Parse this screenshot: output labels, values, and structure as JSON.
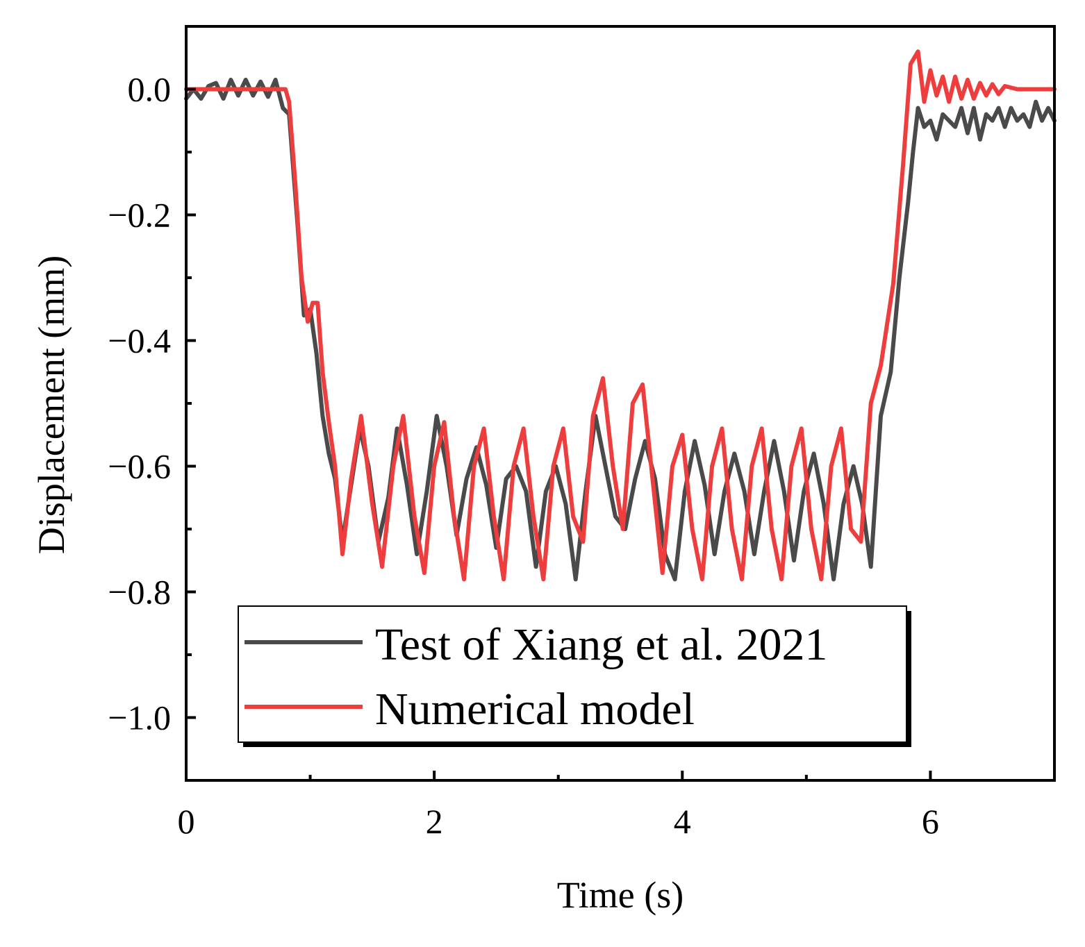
{
  "chart_data": {
    "type": "line",
    "title": "",
    "xlabel": "Time (s)",
    "ylabel": "Displacement (mm)",
    "xlim": [
      0,
      7
    ],
    "ylim": [
      -1.1,
      0.1
    ],
    "xticks": [
      0,
      2,
      4,
      6
    ],
    "xtick_labels": [
      "0",
      "2",
      "4",
      "6"
    ],
    "xminor": [
      1,
      3,
      5
    ],
    "yticks": [
      0.0,
      -0.2,
      -0.4,
      -0.6,
      -0.8,
      -1.0
    ],
    "ytick_labels": [
      "0.0",
      "−0.2",
      "−0.4",
      "−0.6",
      "−0.8",
      "−1.0"
    ],
    "yminor": [
      -0.1,
      -0.3,
      -0.5,
      -0.7,
      -0.9
    ],
    "grid": false,
    "legend_position": "bottom-left",
    "series": [
      {
        "name": "Test of Xiang et al. 2021",
        "color": "#4a4a4a",
        "x": [
          0,
          0.06,
          0.12,
          0.18,
          0.24,
          0.3,
          0.36,
          0.42,
          0.48,
          0.54,
          0.6,
          0.66,
          0.72,
          0.78,
          0.83,
          0.9,
          0.95,
          1.0,
          1.05,
          1.1,
          1.15,
          1.2,
          1.26,
          1.33,
          1.4,
          1.47,
          1.55,
          1.63,
          1.7,
          1.78,
          1.86,
          1.94,
          2.02,
          2.1,
          2.18,
          2.26,
          2.34,
          2.42,
          2.5,
          2.58,
          2.66,
          2.74,
          2.82,
          2.9,
          2.98,
          3.06,
          3.14,
          3.22,
          3.3,
          3.38,
          3.46,
          3.54,
          3.62,
          3.7,
          3.78,
          3.86,
          3.94,
          4.02,
          4.1,
          4.18,
          4.26,
          4.34,
          4.42,
          4.5,
          4.58,
          4.66,
          4.74,
          4.82,
          4.9,
          4.98,
          5.06,
          5.14,
          5.22,
          5.3,
          5.38,
          5.45,
          5.52,
          5.6,
          5.68,
          5.75,
          5.82,
          5.86,
          5.9,
          5.95,
          6.0,
          6.05,
          6.1,
          6.15,
          6.2,
          6.25,
          6.3,
          6.35,
          6.4,
          6.45,
          6.5,
          6.55,
          6.6,
          6.65,
          6.7,
          6.75,
          6.8,
          6.85,
          6.9,
          6.95,
          7.0
        ],
        "values": [
          -0.015,
          0.0,
          -0.015,
          0.005,
          0.01,
          -0.015,
          0.015,
          -0.01,
          0.015,
          -0.01,
          0.012,
          -0.012,
          0.015,
          -0.03,
          -0.04,
          -0.22,
          -0.36,
          -0.35,
          -0.42,
          -0.52,
          -0.58,
          -0.62,
          -0.72,
          -0.63,
          -0.54,
          -0.6,
          -0.72,
          -0.65,
          -0.54,
          -0.63,
          -0.74,
          -0.64,
          -0.52,
          -0.6,
          -0.71,
          -0.62,
          -0.57,
          -0.63,
          -0.73,
          -0.62,
          -0.6,
          -0.64,
          -0.76,
          -0.64,
          -0.6,
          -0.66,
          -0.78,
          -0.64,
          -0.52,
          -0.6,
          -0.68,
          -0.7,
          -0.62,
          -0.56,
          -0.62,
          -0.74,
          -0.78,
          -0.64,
          -0.56,
          -0.63,
          -0.74,
          -0.64,
          -0.58,
          -0.64,
          -0.74,
          -0.64,
          -0.56,
          -0.64,
          -0.75,
          -0.64,
          -0.58,
          -0.66,
          -0.78,
          -0.66,
          -0.6,
          -0.66,
          -0.76,
          -0.52,
          -0.45,
          -0.3,
          -0.18,
          -0.1,
          -0.03,
          -0.06,
          -0.05,
          -0.08,
          -0.04,
          -0.05,
          -0.06,
          -0.03,
          -0.07,
          -0.03,
          -0.08,
          -0.04,
          -0.05,
          -0.03,
          -0.06,
          -0.03,
          -0.05,
          -0.04,
          -0.06,
          -0.02,
          -0.05,
          -0.03,
          -0.05
        ]
      },
      {
        "name": "Numerical model",
        "color": "#ee3d3d",
        "x": [
          0,
          0.2,
          0.4,
          0.6,
          0.8,
          0.83,
          0.88,
          0.93,
          0.98,
          1.02,
          1.06,
          1.1,
          1.15,
          1.2,
          1.26,
          1.33,
          1.41,
          1.5,
          1.58,
          1.67,
          1.75,
          1.84,
          1.92,
          2.0,
          2.08,
          2.16,
          2.24,
          2.32,
          2.4,
          2.48,
          2.56,
          2.64,
          2.72,
          2.8,
          2.88,
          2.96,
          3.04,
          3.12,
          3.2,
          3.28,
          3.36,
          3.44,
          3.52,
          3.6,
          3.68,
          3.76,
          3.84,
          3.92,
          4.0,
          4.08,
          4.16,
          4.24,
          4.32,
          4.4,
          4.48,
          4.56,
          4.64,
          4.72,
          4.8,
          4.88,
          4.96,
          5.04,
          5.12,
          5.2,
          5.28,
          5.36,
          5.44,
          5.52,
          5.6,
          5.7,
          5.78,
          5.84,
          5.9,
          5.95,
          6.0,
          6.05,
          6.1,
          6.15,
          6.2,
          6.25,
          6.3,
          6.35,
          6.4,
          6.45,
          6.5,
          6.55,
          6.6,
          6.7,
          6.8,
          6.9,
          7.0
        ],
        "values": [
          0.0,
          0.0,
          0.0,
          0.0,
          0.0,
          -0.02,
          -0.15,
          -0.3,
          -0.37,
          -0.34,
          -0.34,
          -0.45,
          -0.53,
          -0.6,
          -0.74,
          -0.62,
          -0.52,
          -0.66,
          -0.76,
          -0.6,
          -0.52,
          -0.68,
          -0.77,
          -0.6,
          -0.53,
          -0.68,
          -0.78,
          -0.6,
          -0.54,
          -0.68,
          -0.78,
          -0.6,
          -0.54,
          -0.68,
          -0.78,
          -0.6,
          -0.54,
          -0.68,
          -0.72,
          -0.52,
          -0.46,
          -0.6,
          -0.7,
          -0.5,
          -0.47,
          -0.62,
          -0.77,
          -0.6,
          -0.55,
          -0.7,
          -0.78,
          -0.6,
          -0.54,
          -0.7,
          -0.78,
          -0.6,
          -0.54,
          -0.7,
          -0.78,
          -0.6,
          -0.54,
          -0.7,
          -0.78,
          -0.6,
          -0.54,
          -0.7,
          -0.72,
          -0.5,
          -0.44,
          -0.31,
          -0.12,
          0.04,
          0.06,
          -0.02,
          0.03,
          -0.01,
          0.02,
          -0.02,
          0.02,
          -0.015,
          0.015,
          -0.015,
          0.01,
          -0.01,
          0.008,
          -0.008,
          0.005,
          0.0,
          0.0,
          0.0,
          0.0
        ]
      }
    ]
  }
}
